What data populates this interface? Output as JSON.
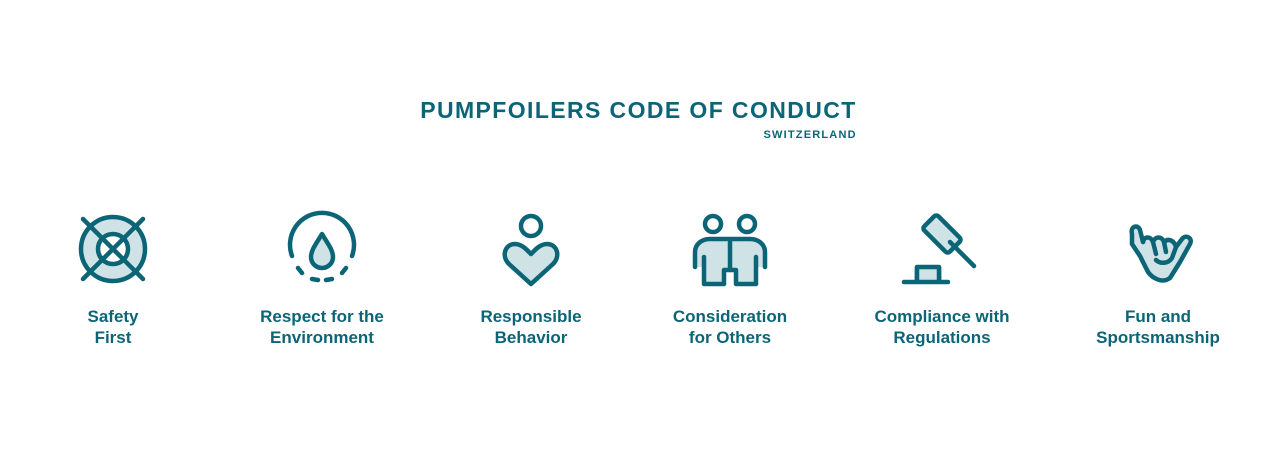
{
  "header": {
    "title": "PUMPFOILERS CODE OF CONDUCT",
    "subtitle": "SWITZERLAND"
  },
  "colors": {
    "primary": "#0b6577",
    "light_fill": "#cfe2e6"
  },
  "items": [
    {
      "icon": "lifebuoy-icon",
      "line1": "Safety",
      "line2": "First"
    },
    {
      "icon": "water-drop-icon",
      "line1": "Respect for the",
      "line2": "Environment"
    },
    {
      "icon": "person-heart-icon",
      "line1": "Responsible",
      "line2": "Behavior"
    },
    {
      "icon": "two-people-icon",
      "line1": "Consideration",
      "line2": "for Others"
    },
    {
      "icon": "gavel-icon",
      "line1": "Compliance with",
      "line2": "Regulations"
    },
    {
      "icon": "shaka-hand-icon",
      "line1": "Fun and",
      "line2": "Sportsmanship"
    }
  ]
}
